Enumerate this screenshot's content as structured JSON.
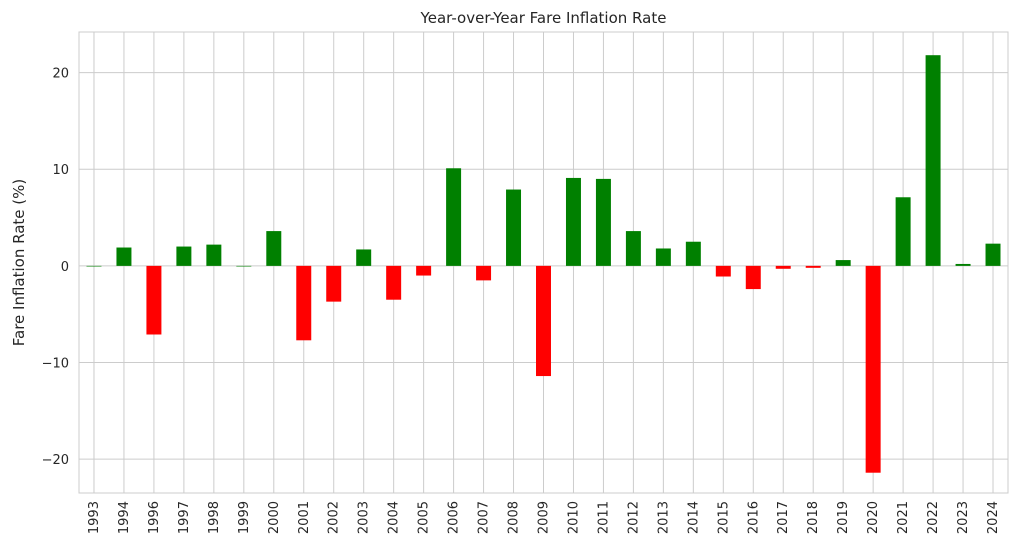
{
  "chart_data": {
    "type": "bar",
    "title": "Year-over-Year Fare Inflation Rate",
    "xlabel": "",
    "ylabel": "Fare Inflation Rate (%)",
    "categories": [
      "1993",
      "1994",
      "1996",
      "1997",
      "1998",
      "1999",
      "2000",
      "2001",
      "2002",
      "2003",
      "2004",
      "2005",
      "2006",
      "2007",
      "2008",
      "2009",
      "2010",
      "2011",
      "2012",
      "2013",
      "2014",
      "2015",
      "2016",
      "2017",
      "2018",
      "2019",
      "2020",
      "2021",
      "2022",
      "2023",
      "2024"
    ],
    "values": [
      0.0,
      1.9,
      -7.1,
      2.0,
      2.2,
      0.0,
      3.6,
      -7.7,
      -3.7,
      1.7,
      -3.5,
      -1.0,
      10.1,
      -1.5,
      7.9,
      -11.4,
      9.1,
      9.0,
      3.6,
      1.8,
      2.5,
      -1.1,
      -2.4,
      -0.3,
      -0.2,
      0.6,
      -21.4,
      7.1,
      21.8,
      0.2,
      2.3
    ],
    "ylim": [
      -23.5,
      24.2
    ],
    "yticks": [
      -20,
      -10,
      0,
      10,
      20
    ],
    "ytick_labels": [
      "−20",
      "−10",
      "0",
      "10",
      "20"
    ],
    "colors": {
      "positive": "#008000",
      "negative": "#ff0000",
      "grid": "#cccccc"
    },
    "grid": true
  }
}
